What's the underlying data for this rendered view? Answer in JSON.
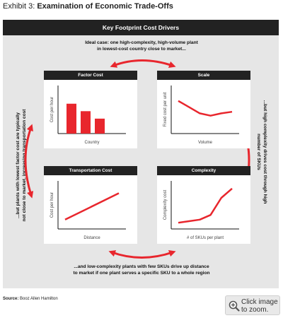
{
  "exhibit": {
    "lead": "Exhibit 3:",
    "title": "Examination of Economic Trade-Offs"
  },
  "header": "Key Footprint Cost Drivers",
  "captions": {
    "top_line1": "Ideal case: one high-complexity, high-volume plant",
    "top_line2": "in lowest-cost country close to market...",
    "left": "...but plants with lowest factor cost are typically not close to market, increasing transportation cost",
    "right": "...but high complexity drives cost through high number of SKUs",
    "bottom_line1": "...and low-complexity plants with few SKUs drive up distance",
    "bottom_line2": "to market if one plant serves a specific SKU to a whole region"
  },
  "panels": {
    "factor_cost": {
      "title": "Factor Cost",
      "ylabel": "Cost per hour",
      "xlabel": "Country"
    },
    "scale": {
      "title": "Scale",
      "ylabel": "Fixed cost per unit",
      "xlabel": "Volume"
    },
    "transportation": {
      "title": "Transportation Cost",
      "ylabel": "Cost per hour",
      "xlabel": "Distance"
    },
    "complexity": {
      "title": "Complexity",
      "ylabel": "Complexity cost",
      "xlabel": "# of SKUs per plant"
    }
  },
  "source": {
    "label": "Source:",
    "text": "Booz Allen Hamilton"
  },
  "zoom": {
    "line1": "Click image",
    "line2": "to zoom."
  },
  "colors": {
    "accent_red": "#e8262d",
    "header_black": "#222222",
    "panel_gray": "#e6e6e6"
  },
  "chart_data": [
    {
      "type": "bar",
      "title": "Factor Cost",
      "xlabel": "Country",
      "ylabel": "Cost per hour",
      "categories": [
        "",
        "",
        ""
      ],
      "values": [
        3.2,
        2.4,
        1.6
      ],
      "ylim": [
        0,
        5
      ]
    },
    {
      "type": "line",
      "title": "Scale",
      "xlabel": "Volume",
      "ylabel": "Fixed cost per unit",
      "x": [
        0,
        1,
        2,
        3,
        4,
        5
      ],
      "y": [
        4.2,
        3.4,
        2.6,
        2.3,
        2.6,
        2.8
      ],
      "ylim": [
        0,
        6
      ]
    },
    {
      "type": "line",
      "title": "Transportation Cost",
      "xlabel": "Distance",
      "ylabel": "Cost per hour",
      "x": [
        0,
        5
      ],
      "y": [
        1.2,
        4.6
      ],
      "ylim": [
        0,
        6
      ]
    },
    {
      "type": "line",
      "title": "Complexity",
      "xlabel": "# of SKUs per plant",
      "ylabel": "Complexity cost",
      "x": [
        0,
        1,
        2,
        3,
        4,
        5
      ],
      "y": [
        0.8,
        1.0,
        1.2,
        1.8,
        4.0,
        5.2
      ],
      "ylim": [
        0,
        6
      ]
    }
  ]
}
